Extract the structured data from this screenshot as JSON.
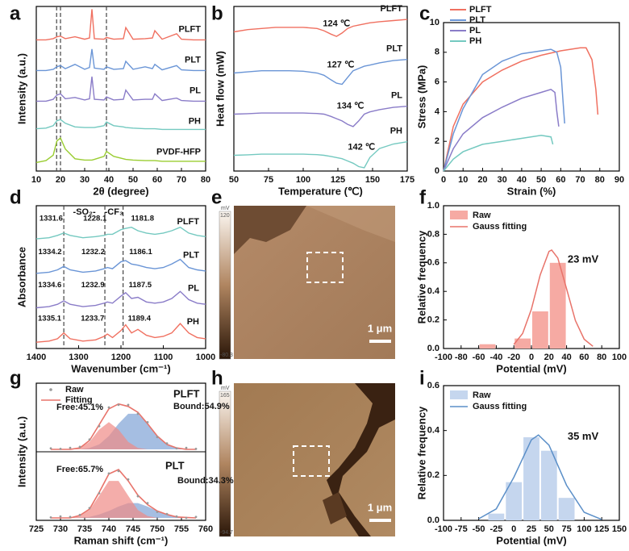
{
  "chart_data": [
    {
      "type": "xrd",
      "panel": "a",
      "xlabel": "2θ (degree)",
      "ylabel": "Intensity (a.u.)",
      "xlim": [
        10,
        80
      ],
      "xticks": [
        10,
        20,
        30,
        40,
        50,
        60,
        70,
        80
      ],
      "vlines": [
        18.4,
        20,
        39
      ],
      "x": [
        10,
        14,
        17,
        18.5,
        20,
        22,
        26,
        30,
        32,
        33,
        34,
        38,
        39,
        42,
        46,
        47,
        50,
        55,
        58,
        59,
        62,
        68,
        70,
        75,
        80
      ],
      "series": [
        {
          "name": "PLFT",
          "color": "#f07060",
          "values": [
            1,
            1,
            1.2,
            1.5,
            1.6,
            1.2,
            1.5,
            1.1,
            1.3,
            6,
            1.2,
            1.1,
            1.4,
            1.1,
            1.2,
            3,
            1.1,
            1.2,
            1.3,
            2.5,
            1.1,
            2,
            1.1,
            1,
            1
          ]
        },
        {
          "name": "PLT",
          "color": "#6a95d6",
          "values": [
            1,
            1,
            1.2,
            1.6,
            1.8,
            1.3,
            2,
            1.2,
            1.5,
            4.5,
            1.4,
            1.2,
            1.6,
            1.2,
            1.3,
            2.5,
            1.2,
            1.6,
            1.3,
            2,
            1.1,
            1.8,
            1.1,
            1,
            1
          ]
        },
        {
          "name": "PL",
          "color": "#8a7cc8",
          "values": [
            1,
            1,
            1.3,
            2,
            2.2,
            1.4,
            1.6,
            1.2,
            1.4,
            5,
            1.3,
            1.2,
            1.7,
            1.2,
            1.3,
            2.8,
            1.2,
            1.3,
            1.3,
            2.2,
            1.1,
            1.5,
            1.1,
            1,
            1
          ]
        },
        {
          "name": "PH",
          "color": "#74c9c0",
          "values": [
            1.5,
            1.6,
            2,
            2.8,
            3,
            2.4,
            1.8,
            1.7,
            1.7,
            1.7,
            1.7,
            2,
            2.6,
            2,
            1.8,
            1.7,
            1.6,
            1.5,
            1.5,
            1.5,
            1.4,
            1.4,
            1.4,
            1.4,
            1.4
          ]
        },
        {
          "name": "PVDF-HFP",
          "color": "#9acd32",
          "values": [
            1,
            1.3,
            2.2,
            4.5,
            5,
            3.2,
            1.6,
            1.4,
            1.4,
            1.4,
            1.5,
            2,
            2.8,
            2,
            1.6,
            1.5,
            1.4,
            1.3,
            1.3,
            1.3,
            1.2,
            1.2,
            1.2,
            1.2,
            1.2
          ]
        }
      ]
    },
    {
      "type": "dsc",
      "panel": "b",
      "xlabel": "Temperature (℃)",
      "ylabel": "Heat flow (mW)",
      "xlim": [
        50,
        175
      ],
      "xticks": [
        50,
        75,
        100,
        125,
        150,
        175
      ],
      "x": [
        50,
        60,
        70,
        80,
        90,
        100,
        110,
        115,
        120,
        124,
        128,
        132,
        136,
        140,
        144,
        148,
        155,
        165,
        175
      ],
      "series": [
        {
          "name": "PLFT",
          "color": "#f07060",
          "peak": 124,
          "peak_label": "124 ℃",
          "values": [
            0,
            0.1,
            0.15,
            0.2,
            0.2,
            0.2,
            0.15,
            0.05,
            -0.1,
            -0.2,
            -0.05,
            0.15,
            0.25,
            0.3,
            0.35,
            0.4,
            0.45,
            0.5,
            0.55
          ]
        },
        {
          "name": "PLT",
          "color": "#6a95d6",
          "peak": 127,
          "peak_label": "127 ℃",
          "values": [
            0,
            0.05,
            0.1,
            0.1,
            0.1,
            0.08,
            0,
            -0.1,
            -0.3,
            -0.45,
            -0.5,
            -0.2,
            0.1,
            0.2,
            0.3,
            0.35,
            0.45,
            0.55,
            0.6
          ]
        },
        {
          "name": "PL",
          "color": "#8a7cc8",
          "peak": 134,
          "peak_label": "134 ℃",
          "values": [
            0,
            0.02,
            0.05,
            0.05,
            0.05,
            0.05,
            0.03,
            0,
            -0.1,
            -0.2,
            -0.3,
            -0.45,
            -0.55,
            -0.3,
            0,
            0.1,
            0.2,
            0.3,
            0.35
          ]
        },
        {
          "name": "PH",
          "color": "#74c9c0",
          "peak": 142,
          "peak_label": "142 ℃",
          "values": [
            0,
            0.02,
            0.05,
            0.05,
            0.05,
            0.05,
            0.03,
            0,
            -0.05,
            -0.1,
            -0.15,
            -0.25,
            -0.35,
            -0.5,
            -0.55,
            -0.1,
            0.3,
            0.5,
            0.6
          ]
        }
      ]
    },
    {
      "type": "stress",
      "panel": "c",
      "xlabel": "Strain (%)",
      "ylabel": "Stress (MPa)",
      "xlim": [
        0,
        90
      ],
      "xticks": [
        0,
        10,
        20,
        30,
        40,
        50,
        60,
        70,
        80,
        90
      ],
      "ylim": [
        0,
        10
      ],
      "yticks": [
        0,
        2,
        4,
        6,
        8,
        10
      ],
      "legend": "upper left",
      "series": [
        {
          "name": "PLFT",
          "color": "#f07060",
          "x": [
            0,
            5,
            10,
            20,
            30,
            40,
            50,
            60,
            65,
            70,
            73,
            76,
            78,
            79
          ],
          "values": [
            0,
            3,
            4.5,
            6,
            6.8,
            7.4,
            7.8,
            8.1,
            8.2,
            8.3,
            8.3,
            7.5,
            5.5,
            3.8
          ]
        },
        {
          "name": "PLT",
          "color": "#6a95d6",
          "x": [
            0,
            5,
            10,
            20,
            30,
            40,
            50,
            55,
            58,
            60,
            61,
            62
          ],
          "values": [
            0,
            2.5,
            4.2,
            6.5,
            7.4,
            7.9,
            8.1,
            8.2,
            8,
            7,
            5,
            3.2
          ]
        },
        {
          "name": "PL",
          "color": "#8a7cc8",
          "x": [
            0,
            5,
            10,
            20,
            30,
            40,
            50,
            55,
            57,
            58,
            59
          ],
          "values": [
            0,
            1.5,
            2.5,
            3.6,
            4.3,
            4.9,
            5.3,
            5.5,
            5.3,
            4,
            3
          ]
        },
        {
          "name": "PH",
          "color": "#74c9c0",
          "x": [
            0,
            5,
            10,
            20,
            30,
            40,
            50,
            55,
            56
          ],
          "values": [
            0,
            0.8,
            1.3,
            1.8,
            2,
            2.2,
            2.4,
            2.3,
            1.8
          ]
        }
      ]
    },
    {
      "type": "ftir",
      "panel": "d",
      "xlabel": "Wavenumber (cm⁻¹)",
      "ylabel": "Absorbance",
      "xlim": [
        1400,
        1000
      ],
      "xticks": [
        1400,
        1300,
        1200,
        1100,
        1000
      ],
      "vlines": [
        1335,
        1238,
        1195
      ],
      "group_labels": [
        "-SO₂-",
        "-CF₃"
      ],
      "x": [
        1400,
        1370,
        1350,
        1335,
        1320,
        1290,
        1260,
        1240,
        1232,
        1220,
        1200,
        1189,
        1175,
        1160,
        1140,
        1120,
        1100,
        1080,
        1060,
        1040,
        1020,
        1000
      ],
      "series": [
        {
          "name": "PLFT",
          "color": "#74c9c0",
          "peaks": [
            1331.6,
            1228.1,
            1181.8
          ],
          "values": [
            0.35,
            0.4,
            0.5,
            0.6,
            0.5,
            0.4,
            0.45,
            0.5,
            0.55,
            0.55,
            0.75,
            0.8,
            0.85,
            0.7,
            0.6,
            0.55,
            0.6,
            0.7,
            0.85,
            0.6,
            0.5,
            0.45
          ]
        },
        {
          "name": "PLT",
          "color": "#6a95d6",
          "peaks": [
            1334.2,
            1232.2,
            1186.1
          ],
          "values": [
            0.3,
            0.35,
            0.45,
            0.6,
            0.45,
            0.35,
            0.4,
            0.5,
            0.55,
            0.5,
            0.8,
            0.85,
            0.7,
            0.65,
            0.55,
            0.5,
            0.55,
            0.7,
            0.9,
            0.55,
            0.45,
            0.4
          ]
        },
        {
          "name": "PL",
          "color": "#8a7cc8",
          "peaks": [
            1334.6,
            1232.9,
            1187.5
          ],
          "values": [
            0.25,
            0.3,
            0.4,
            0.55,
            0.4,
            0.3,
            0.35,
            0.45,
            0.5,
            0.45,
            0.75,
            0.9,
            0.65,
            0.7,
            0.5,
            0.45,
            0.5,
            0.65,
            0.95,
            0.6,
            0.45,
            0.4
          ]
        },
        {
          "name": "PH",
          "color": "#f07060",
          "peaks": [
            1335.1,
            1233.7,
            1189.4
          ],
          "values": [
            0.2,
            0.25,
            0.35,
            0.6,
            0.35,
            0.25,
            0.3,
            0.45,
            0.55,
            0.4,
            0.7,
            0.95,
            0.6,
            0.75,
            0.5,
            0.4,
            0.45,
            0.6,
            1.0,
            0.6,
            0.4,
            0.35
          ]
        }
      ]
    },
    {
      "type": "histogram",
      "panel": "f",
      "xlabel": "Potential (mV)",
      "ylabel": "Relative frequency",
      "xlim": [
        -100,
        100
      ],
      "xticks": [
        -100,
        -80,
        -60,
        -40,
        -20,
        0,
        20,
        40,
        60,
        80,
        100
      ],
      "ylim": [
        0,
        1
      ],
      "yticks": [
        {
          "value": 0,
          "label": "0.0"
        },
        0.2,
        0.4,
        0.6,
        0.8,
        {
          "value": 1,
          "label": "1.0"
        }
      ],
      "name": "Raw",
      "color": "#f6aaa3",
      "bins": [
        -60,
        -40,
        -20,
        0,
        20,
        40
      ],
      "values": [
        0.03,
        0,
        0.07,
        0.26,
        0.6
      ],
      "fit": {
        "name": "Gauss fitting",
        "color": "#e8736a",
        "x": [
          -20,
          -10,
          0,
          10,
          20,
          23,
          30,
          40,
          50,
          60,
          70
        ],
        "values": [
          0.028,
          0.105,
          0.276,
          0.516,
          0.68,
          0.69,
          0.634,
          0.418,
          0.196,
          0.065,
          0.015
        ]
      },
      "annotation": "23 mV"
    },
    {
      "type": "raman",
      "panel": "g",
      "xlabel": "Raman shift (cm⁻¹)",
      "ylabel": "Intensity (a.u.)",
      "xlim": [
        725,
        760
      ],
      "xticks": [
        725,
        730,
        735,
        740,
        745,
        750,
        755,
        760
      ],
      "legend": [
        {
          "name": "Raw",
          "color": "#999999"
        },
        {
          "name": "Fitting",
          "color": "#e8736a"
        }
      ],
      "free_color": "#f08a86",
      "bound_color": "#7fa3d6",
      "x": [
        728,
        730,
        732,
        734,
        736,
        738,
        740,
        742,
        744,
        746,
        748,
        750,
        752,
        754,
        756,
        758
      ],
      "samples": [
        {
          "name": "PLFT",
          "free_label": "Free:45.1%",
          "bound_label": "Bound:54.9%",
          "raw": [
            0.02,
            0.01,
            0.03,
            0.05,
            0.2,
            0.47,
            0.85,
            0.9,
            0.9,
            0.72,
            0.55,
            0.25,
            0.12,
            0.02,
            0.03,
            0.01
          ],
          "fit": [
            0,
            0,
            0,
            0.03,
            0.18,
            0.5,
            0.82,
            0.92,
            0.87,
            0.75,
            0.52,
            0.27,
            0.1,
            0.03,
            0,
            0
          ],
          "free": [
            0,
            0,
            0,
            0.03,
            0.15,
            0.4,
            0.55,
            0.4,
            0.15,
            0.03,
            0,
            0,
            0,
            0,
            0,
            0
          ],
          "bound": [
            0,
            0,
            0,
            0,
            0.03,
            0.1,
            0.27,
            0.52,
            0.72,
            0.72,
            0.52,
            0.27,
            0.1,
            0.03,
            0,
            0
          ]
        },
        {
          "name": "PLT",
          "free_label": "Free:65.7%",
          "bound_label": "Bound:34.3%",
          "raw": [
            0.01,
            0.03,
            0.02,
            0.06,
            0.2,
            0.5,
            0.9,
            0.95,
            0.78,
            0.44,
            0.3,
            0.12,
            0.08,
            0.03,
            0,
            0.02
          ],
          "fit": [
            0,
            0,
            0,
            0.05,
            0.18,
            0.52,
            0.89,
            0.98,
            0.75,
            0.46,
            0.27,
            0.14,
            0.07,
            0.02,
            0.01,
            0
          ],
          "free": [
            0,
            0,
            0,
            0.04,
            0.16,
            0.45,
            0.75,
            0.75,
            0.45,
            0.16,
            0.04,
            0,
            0,
            0,
            0,
            0
          ],
          "bound": [
            0,
            0,
            0,
            0.01,
            0.02,
            0.07,
            0.14,
            0.23,
            0.3,
            0.3,
            0.23,
            0.14,
            0.07,
            0.02,
            0.01,
            0
          ]
        }
      ]
    },
    {
      "type": "histogram",
      "panel": "i",
      "xlabel": "Potential (mV)",
      "ylabel": "Relative frequency",
      "xlim": [
        -100,
        150
      ],
      "xticks": [
        -100,
        -75,
        -50,
        -25,
        0,
        25,
        50,
        75,
        100,
        125,
        150
      ],
      "ylim": [
        0,
        0.6
      ],
      "yticks": [
        {
          "value": 0,
          "label": "0.0"
        },
        0.2,
        0.4,
        0.6
      ],
      "name": "Raw",
      "color": "#c5d6ee",
      "bins": [
        -37.5,
        -12.5,
        12.5,
        37.5,
        62.5,
        87.5
      ],
      "values": [
        0.03,
        0.17,
        0.37,
        0.31,
        0.1
      ],
      "fit": {
        "name": "Gauss fitting",
        "color": "#5b8fc8",
        "x": [
          -50,
          -25,
          0,
          25,
          35,
          50,
          75,
          100,
          125
        ],
        "values": [
          0.007,
          0.051,
          0.192,
          0.359,
          0.38,
          0.335,
          0.156,
          0.036,
          0.004
        ]
      },
      "annotation": "35 mV"
    }
  ],
  "images": [
    {
      "panel": "e",
      "unit": "mV",
      "max": 120,
      "min": -80.3,
      "scale_bar": "1 μm"
    },
    {
      "panel": "h",
      "unit": "mV",
      "max": 165,
      "min": -94.7,
      "scale_bar": "1 μm"
    }
  ]
}
